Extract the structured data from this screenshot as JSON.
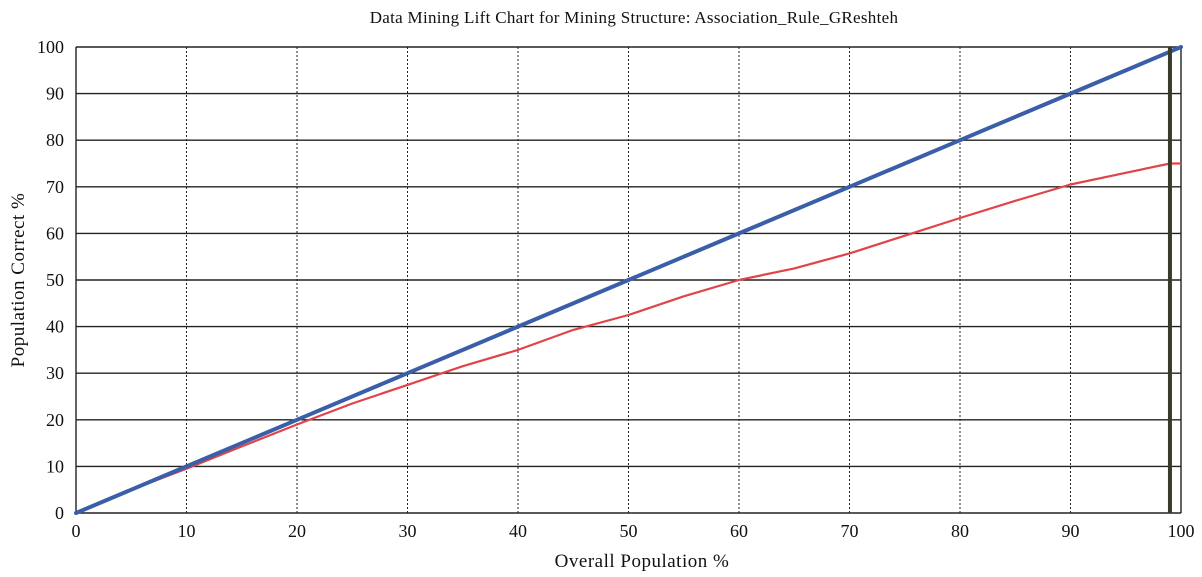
{
  "chart_data": {
    "type": "line",
    "title": "Data Mining Lift Chart for Mining Structure: Association_Rule_GReshteh",
    "xlabel": "Overall Population %",
    "ylabel": "Population Correct %",
    "xlim": [
      0,
      100
    ],
    "ylim": [
      0,
      100
    ],
    "x_ticks": [
      0,
      10,
      20,
      30,
      40,
      50,
      60,
      70,
      80,
      90,
      100
    ],
    "y_ticks": [
      0,
      10,
      20,
      30,
      40,
      50,
      60,
      70,
      80,
      90,
      100
    ],
    "grid": {
      "horizontal": "solid",
      "vertical": "dotted"
    },
    "marker_x": 99,
    "colors": {
      "ideal": "#3a5fa8",
      "model": "#e04448",
      "grid": "#222222",
      "marker": "#3a3a2a"
    },
    "series": [
      {
        "key": "ideal",
        "x": [
          0,
          10,
          20,
          30,
          40,
          50,
          60,
          70,
          80,
          90,
          99,
          100
        ],
        "y": [
          0,
          10,
          20,
          30,
          40,
          50,
          60,
          70,
          80,
          90,
          99,
          100
        ]
      },
      {
        "key": "model",
        "x": [
          0,
          5,
          10,
          15,
          20,
          25,
          30,
          35,
          40,
          45,
          50,
          55,
          60,
          65,
          70,
          75,
          80,
          85,
          90,
          95,
          99,
          100
        ],
        "y": [
          0,
          5,
          9.5,
          14.3,
          19,
          23.5,
          27.5,
          31.5,
          35,
          39.3,
          42.5,
          46.5,
          50,
          52.5,
          55.7,
          59.5,
          63.3,
          67,
          70.5,
          73,
          75,
          75
        ]
      }
    ]
  }
}
